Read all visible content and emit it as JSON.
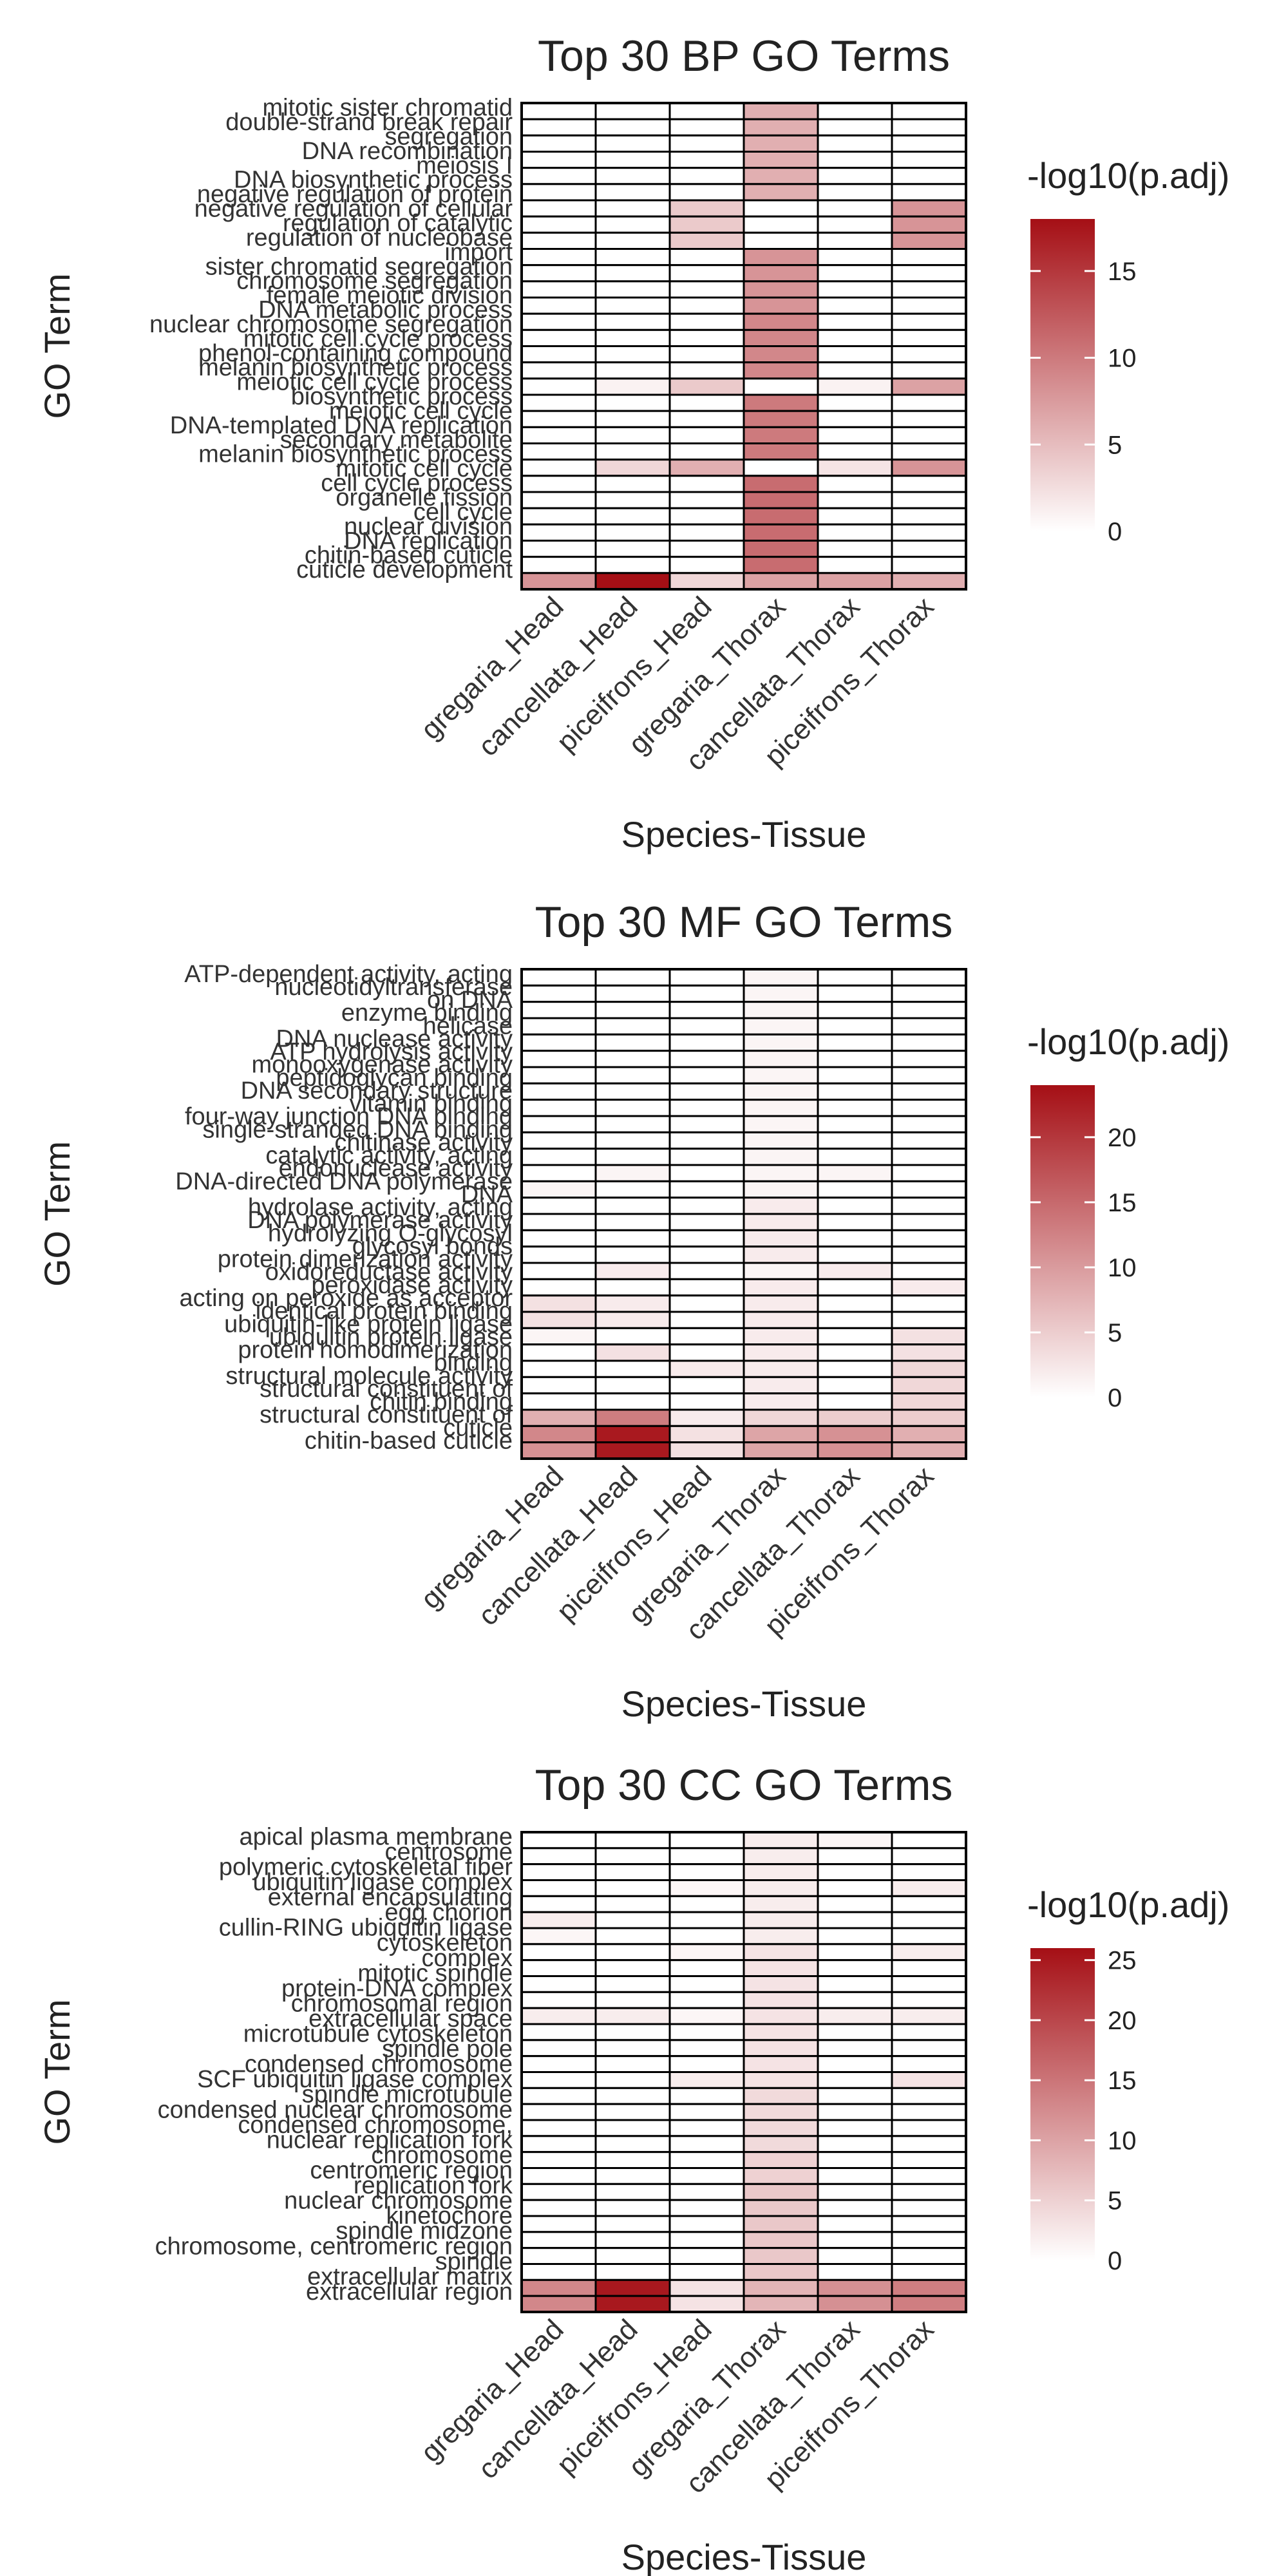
{
  "chart_data": [
    {
      "type": "heatmap",
      "title": "Top 30 BP GO Terms",
      "xlabel": "Species-Tissue",
      "ylabel": "GO Term",
      "legend_title": "-log10(p.adj)",
      "legend_ticks": [
        0,
        5,
        10,
        15
      ],
      "scale_max": 18,
      "columns": [
        "gregaria_Head",
        "cancellata_Head",
        "piceifrons_Head",
        "gregaria_Thorax",
        "cancellata_Thorax",
        "piceifrons_Thorax"
      ],
      "rows": [
        "mitotic sister chromatid segregation",
        "double-strand break repair",
        "DNA recombination",
        "meiosis I",
        "DNA biosynthetic process",
        "negative regulation of protein",
        "negative regulation of cellular",
        "regulation of catalytic",
        "regulation of nucleobase",
        "import",
        "sister chromatid segregation",
        "chromosome segregation",
        "female meiotic division",
        "DNA metabolic process",
        "nuclear chromosome segregation",
        "mitotic cell cycle process",
        "phenol-containing compound",
        "melanin biosynthetic process",
        "meiotic cell cycle process",
        "meiotic cell cycle",
        "DNA-templated DNA replication",
        "secondary metabolite",
        "melanin biosynthetic process",
        "mitotic cell cycle",
        "cell cycle process",
        "organelle fission",
        "cell cycle",
        "nuclear division",
        "DNA replication",
        "chitin-based cuticle development"
      ],
      "row_labels": [
        "mitotic sister chromatid",
        "double-strand break repair",
        "segregation",
        "DNA recombination",
        "meiosis I",
        "DNA biosynthetic process",
        "negative regulation of protein",
        "negative regulation of cellular",
        "regulation of catalytic",
        "regulation of nucleobase",
        "import",
        "sister chromatid segregation",
        "chromosome segregation",
        "female meiotic division",
        "DNA metabolic process",
        "nuclear chromosome segregation",
        "mitotic cell cycle process",
        "phenol-containing compound",
        "melanin biosynthetic process",
        "meiotic cell cycle process",
        "biosynthetic process",
        "meiotic cell cycle",
        "DNA-templated DNA replication",
        "secondary metabolite",
        "melanin biosynthetic process",
        "mitotic cell cycle",
        "cell cycle process",
        "organelle fission",
        "cell cycle",
        "nuclear division",
        "DNA replication",
        "chitin-based cuticle",
        "cuticle development"
      ],
      "values": [
        [
          0,
          0,
          0,
          6,
          0,
          0
        ],
        [
          0,
          0,
          0,
          6,
          0,
          0
        ],
        [
          0,
          0,
          0,
          6,
          0,
          0
        ],
        [
          0,
          0,
          0,
          6,
          0,
          0
        ],
        [
          0,
          0,
          0,
          6,
          0,
          0
        ],
        [
          0,
          0,
          0,
          6,
          0,
          0
        ],
        [
          0,
          0,
          4,
          0,
          0,
          8
        ],
        [
          0,
          0,
          4,
          0,
          0,
          8
        ],
        [
          0,
          0,
          4,
          0,
          0,
          8
        ],
        [
          0,
          0,
          0,
          8,
          0,
          0
        ],
        [
          0,
          0,
          0,
          8,
          0,
          0
        ],
        [
          0,
          0,
          0,
          8,
          0,
          0
        ],
        [
          0,
          0,
          0,
          8,
          0,
          0
        ],
        [
          0,
          0,
          0,
          9,
          0,
          0
        ],
        [
          0,
          0,
          0,
          9,
          0,
          0
        ],
        [
          0,
          0,
          0,
          9,
          0,
          0
        ],
        [
          0,
          0,
          0,
          9,
          0,
          0
        ],
        [
          0,
          1,
          4,
          0,
          1,
          7
        ],
        [
          0,
          0,
          0,
          10,
          0,
          0
        ],
        [
          0,
          0,
          0,
          10,
          0,
          0
        ],
        [
          0,
          0,
          0,
          10,
          0,
          0
        ],
        [
          0,
          0,
          0,
          10,
          0,
          0
        ],
        [
          0,
          3,
          6,
          0,
          2,
          8
        ],
        [
          0,
          0,
          0,
          11,
          0,
          0
        ],
        [
          0,
          0,
          0,
          11,
          0,
          0
        ],
        [
          0,
          0,
          0,
          11,
          0,
          0
        ],
        [
          0,
          0,
          0,
          11,
          0,
          0
        ],
        [
          0,
          0,
          0,
          11,
          0,
          0
        ],
        [
          0,
          0,
          0,
          11,
          0,
          0
        ],
        [
          8,
          18,
          3,
          7,
          7,
          6
        ]
      ]
    },
    {
      "type": "heatmap",
      "title": "Top 30 MF GO Terms",
      "xlabel": "Species-Tissue",
      "ylabel": "GO Term",
      "legend_title": "-log10(p.adj)",
      "legend_ticks": [
        0,
        5,
        10,
        15,
        20
      ],
      "scale_max": 24,
      "columns": [
        "gregaria_Head",
        "cancellata_Head",
        "piceifrons_Head",
        "gregaria_Thorax",
        "cancellata_Thorax",
        "piceifrons_Thorax"
      ],
      "rows": [
        "ATP-dependent activity, acting on DNA",
        "nucleotidyltransferase",
        "enzyme binding",
        "helicase activity",
        "DNA nuclease activity",
        "ATP hydrolysis activity",
        "monooxygenase activity",
        "peptidoglycan binding",
        "DNA secondary structure binding",
        "vitamin binding",
        "four-way junction DNA binding",
        "single-stranded DNA binding",
        "chitinase activity",
        "catalytic activity, acting on DNA",
        "endonuclease activity",
        "DNA-directed DNA polymerase",
        "hydrolase activity, acting on glycosyl bonds",
        "DNA polymerase activity",
        "hydrolyzing O-glycosyl compounds",
        "protein dimerization activity",
        "oxidoreductase activity",
        "peroxidase activity",
        "acting on peroxide as acceptor",
        "ubiquitin-like protein ligase",
        "ubiquitin protein ligase",
        "protein homodimerization",
        "binding",
        "structural molecule activity",
        "structural constituent of cuticle",
        "chitin binding"
      ],
      "row_labels": [
        "ATP-dependent activity, acting",
        "nucleotidyltransferase",
        "on DNA",
        "enzyme binding",
        "helicase",
        "DNA nuclease activity",
        "ATP hydrolysis activity",
        "monooxygenase activity",
        "peptidoglycan binding",
        "DNA secondary structure",
        "vitamin binding",
        "four-way junction DNA binding",
        "single-stranded DNA binding",
        "chitinase activity",
        "catalytic activity, acting",
        "endonuclease activity",
        "DNA-directed DNA polymerase",
        "DNA",
        "hydrolase activity, acting",
        "DNA polymerase activity",
        "hydrolyzing O-glycosyl",
        "glycosyl bonds",
        "protein dimerization activity",
        "oxidoreductase activity",
        "peroxidase activity",
        "acting on peroxide as acceptor",
        "identical protein binding",
        "ubiquitin-like protein ligase",
        "ubiquitin protein ligase",
        "protein homodimerization",
        "binding",
        "structural molecule activity",
        "structural constituent of",
        "chitin binding",
        "structural constituent of",
        "cuticle",
        "chitin-based cuticle"
      ],
      "values": [
        [
          0,
          0,
          0,
          1,
          0,
          0
        ],
        [
          0,
          0,
          0,
          1,
          0,
          0
        ],
        [
          0,
          0,
          0,
          1,
          0,
          0
        ],
        [
          0,
          0,
          0,
          1,
          0,
          0
        ],
        [
          0,
          0,
          0,
          1,
          0,
          0
        ],
        [
          0,
          0,
          0,
          1,
          0,
          0
        ],
        [
          0,
          0,
          0,
          1,
          0,
          0
        ],
        [
          0,
          0,
          0,
          1,
          0,
          0
        ],
        [
          0,
          0,
          0,
          1,
          0,
          0
        ],
        [
          0,
          0,
          0,
          1,
          0,
          0
        ],
        [
          0,
          0,
          0,
          1,
          0,
          0
        ],
        [
          0,
          0,
          0,
          1,
          0,
          0
        ],
        [
          0,
          1,
          0,
          1,
          1,
          0
        ],
        [
          1,
          0,
          0,
          1,
          0,
          0
        ],
        [
          0,
          0,
          0,
          2,
          0,
          0
        ],
        [
          0,
          0,
          0,
          2,
          0,
          0
        ],
        [
          0,
          0,
          0,
          2,
          0,
          0
        ],
        [
          0,
          0,
          0,
          2,
          0,
          0
        ],
        [
          0,
          2,
          0,
          1,
          2,
          0
        ],
        [
          0,
          0,
          0,
          2,
          0,
          2
        ],
        [
          3,
          2,
          0,
          2,
          0,
          0
        ],
        [
          3,
          2,
          0,
          2,
          0,
          0
        ],
        [
          1,
          0,
          0,
          2,
          0,
          3
        ],
        [
          0,
          3,
          0,
          2,
          0,
          3
        ],
        [
          0,
          0,
          2,
          2,
          0,
          4
        ],
        [
          0,
          0,
          0,
          2,
          0,
          4
        ],
        [
          0,
          0,
          0,
          2,
          0,
          4
        ],
        [
          8,
          13,
          2,
          4,
          5,
          5
        ],
        [
          12,
          23,
          3,
          9,
          11,
          8
        ],
        [
          11,
          23,
          3,
          9,
          11,
          8
        ]
      ]
    },
    {
      "type": "heatmap",
      "title": "Top 30 CC GO Terms",
      "xlabel": "Species-Tissue",
      "ylabel": "GO Term",
      "legend_title": "-log10(p.adj)",
      "legend_ticks": [
        0,
        5,
        10,
        15,
        20,
        25
      ],
      "scale_max": 26,
      "columns": [
        "gregaria_Head",
        "cancellata_Head",
        "piceifrons_Head",
        "gregaria_Thorax",
        "cancellata_Thorax",
        "piceifrons_Thorax"
      ],
      "rows": [
        "apical plasma membrane",
        "centrosome",
        "polymeric cytoskeletal fiber",
        "ubiquitin ligase complex",
        "external encapsulating",
        "egg chorion",
        "cullin-RING ubiquitin ligase",
        "cytoskeleton",
        "mitotic spindle",
        "protein-DNA complex",
        "chromosomal region",
        "extracellular space",
        "microtubule cytoskeleton",
        "spindle pole",
        "condensed chromosome",
        "SCF ubiquitin ligase complex",
        "spindle microtubule",
        "condensed nuclear chromosome",
        "nuclear replication fork",
        "condensed chromosome, centromeric",
        "chromosome",
        "centromeric region",
        "replication fork",
        "nuclear chromosome",
        "kinetochore",
        "spindle midzone",
        "chromosome, centromeric region",
        "spindle",
        "extracellular matrix",
        "extracellular region"
      ],
      "row_labels": [
        "apical plasma membrane",
        "centrosome",
        "polymeric cytoskeletal fiber",
        "ubiquitin ligase complex",
        "external encapsulating",
        "egg chorion",
        "cullin-RING ubiquitin ligase",
        "cytoskeleton",
        "complex",
        "mitotic spindle",
        "protein-DNA complex",
        "chromosomal region",
        "extracellular space",
        "microtubule cytoskeleton",
        "spindle pole",
        "condensed chromosome",
        "SCF ubiquitin ligase complex",
        "spindle microtubule",
        "condensed nuclear chromosome",
        "condensed chromosome,",
        "nuclear replication fork",
        "chromosome",
        "centromeric region",
        "replication fork",
        "nuclear chromosome",
        "kinetochore",
        "spindle midzone",
        "chromosome, centromeric region",
        "spindle",
        "extracellular matrix",
        "extracellular region"
      ],
      "values": [
        [
          0,
          0,
          0,
          2,
          1,
          0
        ],
        [
          0,
          0,
          0,
          2,
          0,
          0
        ],
        [
          0,
          0,
          0,
          2,
          0,
          0
        ],
        [
          0,
          0,
          1,
          2,
          0,
          2
        ],
        [
          0,
          0,
          0,
          2,
          0,
          0
        ],
        [
          2,
          0,
          0,
          2,
          0,
          0
        ],
        [
          1,
          0,
          0,
          2,
          0,
          0
        ],
        [
          0,
          0,
          1,
          3,
          0,
          2
        ],
        [
          0,
          0,
          0,
          3,
          0,
          0
        ],
        [
          0,
          0,
          0,
          3,
          0,
          0
        ],
        [
          0,
          0,
          0,
          3,
          0,
          0
        ],
        [
          2,
          2,
          1,
          3,
          2,
          2
        ],
        [
          0,
          0,
          0,
          3,
          0,
          0
        ],
        [
          0,
          0,
          0,
          3,
          0,
          0
        ],
        [
          0,
          0,
          0,
          3,
          0,
          0
        ],
        [
          0,
          0,
          2,
          3,
          0,
          3
        ],
        [
          0,
          0,
          0,
          4,
          0,
          0
        ],
        [
          0,
          0,
          0,
          4,
          0,
          0
        ],
        [
          0,
          0,
          0,
          4,
          0,
          0
        ],
        [
          0,
          0,
          0,
          4,
          0,
          0
        ],
        [
          0,
          0,
          0,
          5,
          0,
          0
        ],
        [
          0,
          0,
          0,
          5,
          0,
          0
        ],
        [
          0,
          0,
          0,
          6,
          0,
          0
        ],
        [
          0,
          0,
          0,
          6,
          0,
          0
        ],
        [
          0,
          0,
          0,
          6,
          0,
          0
        ],
        [
          0,
          0,
          0,
          6,
          0,
          0
        ],
        [
          0,
          0,
          0,
          6,
          0,
          0
        ],
        [
          0,
          0,
          0,
          6,
          0,
          0
        ],
        [
          13,
          25,
          3,
          8,
          12,
          14
        ],
        [
          13,
          25,
          3,
          8,
          12,
          14
        ]
      ]
    }
  ],
  "colors": {
    "scale_low": "#ffffff",
    "scale_high": "#a50f15",
    "grid": "#000000",
    "text": "#222222",
    "label": "#333333"
  }
}
